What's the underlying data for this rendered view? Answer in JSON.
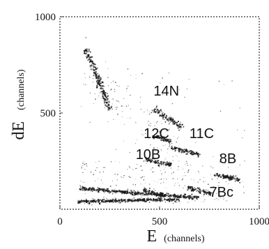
{
  "chart_data": {
    "type": "scatter",
    "title": "",
    "xlabel": "E",
    "xlabel_unit": "(channels)",
    "ylabel": "dE",
    "ylabel_unit": "(channels)",
    "xlim": [
      0,
      1000
    ],
    "ylim": [
      0,
      1000
    ],
    "x_ticks": [
      {
        "value": 0,
        "label": "0"
      },
      {
        "value": 500,
        "label": "500"
      },
      {
        "value": 1000,
        "label": "1000"
      }
    ],
    "y_ticks": [
      {
        "value": 500,
        "label": "500"
      },
      {
        "value": 1000,
        "label": "1000"
      }
    ],
    "grid": false,
    "frame_style": "dotted",
    "point_color": "#1a1a1a",
    "series": [
      {
        "x": [
          130,
          175,
          220,
          250
        ],
        "y": [
          830,
          720,
          600,
          520
        ],
        "spread": 22
      },
      {
        "x": [
          470,
          560,
          620
        ],
        "y": [
          520,
          460,
          420
        ],
        "spread": 22
      },
      {
        "x": [
          470,
          530,
          560
        ],
        "y": [
          380,
          360,
          350
        ],
        "spread": 14
      },
      {
        "x": [
          560,
          640,
          700
        ],
        "y": [
          320,
          300,
          280
        ],
        "spread": 12
      },
      {
        "x": [
          430,
          500,
          560
        ],
        "y": [
          260,
          240,
          230
        ],
        "spread": 12
      },
      {
        "x": [
          780,
          850,
          900
        ],
        "y": [
          180,
          165,
          150
        ],
        "spread": 14
      },
      {
        "x": [
          640,
          710,
          760
        ],
        "y": [
          110,
          95,
          80
        ],
        "spread": 16
      },
      {
        "x": [
          420,
          480,
          540
        ],
        "y": [
          100,
          80,
          70
        ],
        "spread": 16
      },
      {
        "x": [
          100,
          300,
          500,
          700
        ],
        "y": [
          110,
          90,
          75,
          60
        ],
        "spread": 10
      },
      {
        "x": [
          90,
          350,
          600
        ],
        "y": [
          40,
          45,
          50
        ],
        "spread": 8
      }
    ],
    "annotations": [
      {
        "text": "14N",
        "x": 470,
        "y": 590
      },
      {
        "text": "12C",
        "x": 420,
        "y": 370
      },
      {
        "text": "11C",
        "x": 650,
        "y": 370
      },
      {
        "text": "10B",
        "x": 380,
        "y": 260
      },
      {
        "text": "8B",
        "x": 800,
        "y": 240
      },
      {
        "text": "7Bc",
        "x": 750,
        "y": 65
      }
    ]
  }
}
